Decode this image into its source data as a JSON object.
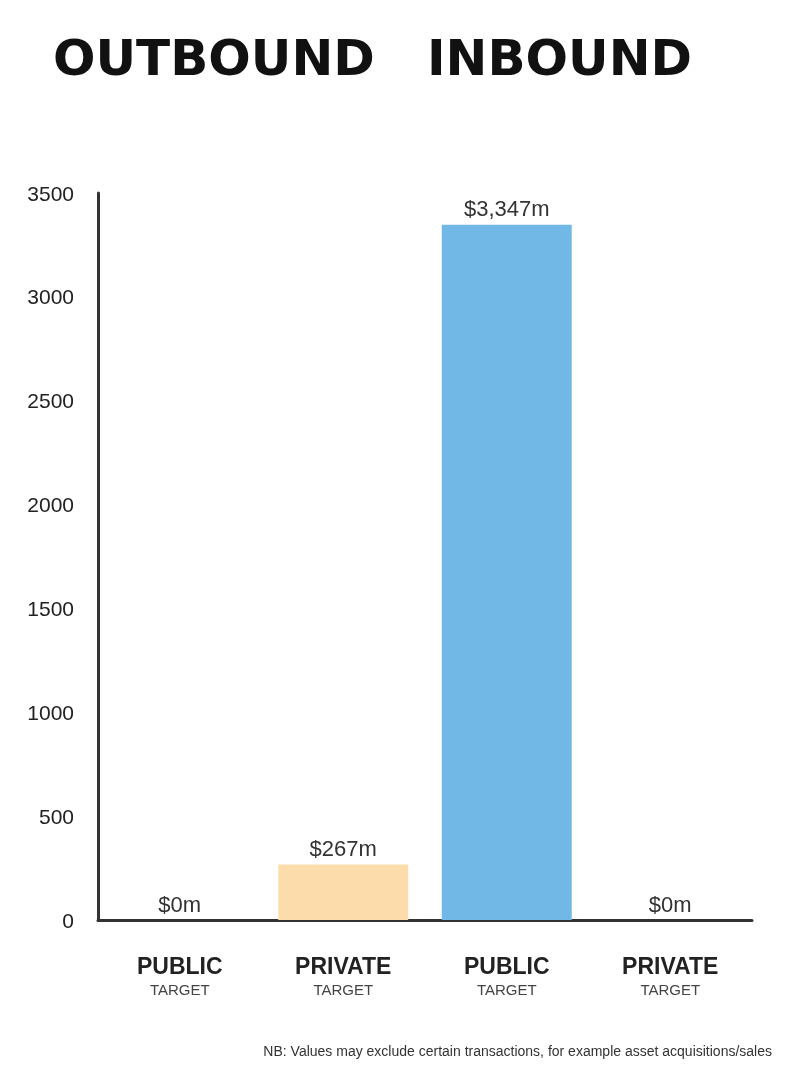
{
  "chart_data": {
    "type": "bar",
    "title": "OUTBOUND   INBOUND",
    "categories": [
      "PUBLIC\nTARGET",
      "PRIVATE\nTARGET",
      "PUBLIC\nTARGET",
      "PRIVATE\nTARGET"
    ],
    "values": [
      0,
      267,
      3347,
      0
    ],
    "colors": [
      "#fbdcaa",
      "#fbdcaa",
      "#72b8e6",
      "#72b8e6"
    ],
    "value_labels": [
      "$0m",
      "$267m",
      "$3,347m",
      "$0m"
    ],
    "ylim": [
      0,
      3500
    ],
    "yticks": [
      0,
      500,
      1000,
      1500,
      2000,
      2500,
      3000,
      3500
    ],
    "grid": false,
    "annotations": [
      "NB: Values may exclude certain transactions, for example asset acquisitions/sales"
    ]
  }
}
